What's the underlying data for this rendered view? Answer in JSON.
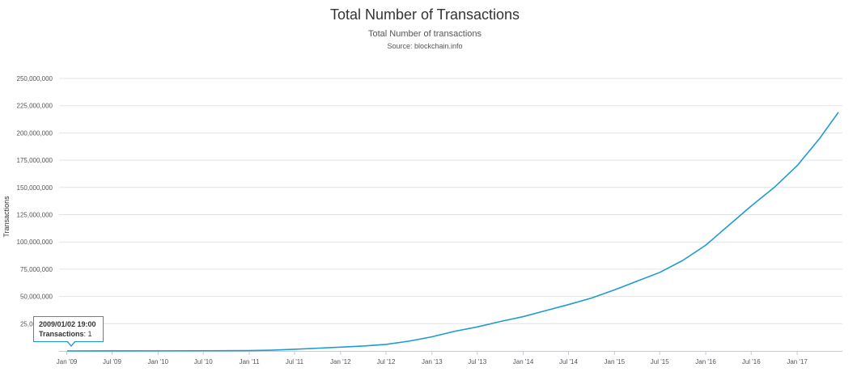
{
  "chart_data": {
    "type": "line",
    "title": "Total Number of Transactions",
    "subtitle": "Total Number of transactions",
    "source": "Source: blockchain.info",
    "xlabel": "",
    "ylabel": "Transactions",
    "ylim": [
      0,
      250000000
    ],
    "yticks": [
      {
        "value": 25000000,
        "label": "25,000,000"
      },
      {
        "value": 50000000,
        "label": "50,000,000"
      },
      {
        "value": 75000000,
        "label": "75,000,000"
      },
      {
        "value": 100000000,
        "label": "100,000,000"
      },
      {
        "value": 125000000,
        "label": "125,000,000"
      },
      {
        "value": 150000000,
        "label": "150,000,000"
      },
      {
        "value": 175000000,
        "label": "175,000,000"
      },
      {
        "value": 200000000,
        "label": "200,000,000"
      },
      {
        "value": 225000000,
        "label": "225,000,000"
      },
      {
        "value": 250000000,
        "label": "250,000,000"
      }
    ],
    "xlim": [
      "2008-12-01",
      "2017-07-01"
    ],
    "xticks": [
      {
        "date": "2009-01-01",
        "label": "Jan '09"
      },
      {
        "date": "2009-07-01",
        "label": "Jul '09"
      },
      {
        "date": "2010-01-01",
        "label": "Jan '10"
      },
      {
        "date": "2010-07-01",
        "label": "Jul '10"
      },
      {
        "date": "2011-01-01",
        "label": "Jan '11"
      },
      {
        "date": "2011-07-01",
        "label": "Jul '11"
      },
      {
        "date": "2012-01-01",
        "label": "Jan '12"
      },
      {
        "date": "2012-07-01",
        "label": "Jul '12"
      },
      {
        "date": "2013-01-01",
        "label": "Jan '13"
      },
      {
        "date": "2013-07-01",
        "label": "Jul '13"
      },
      {
        "date": "2014-01-01",
        "label": "Jan '14"
      },
      {
        "date": "2014-07-01",
        "label": "Jul '14"
      },
      {
        "date": "2015-01-01",
        "label": "Jan '15"
      },
      {
        "date": "2015-07-01",
        "label": "Jul '15"
      },
      {
        "date": "2016-01-01",
        "label": "Jan '16"
      },
      {
        "date": "2016-07-01",
        "label": "Jul '16"
      },
      {
        "date": "2017-01-01",
        "label": "Jan '17"
      }
    ],
    "grid": true,
    "series": [
      {
        "color": "#1f9bd1",
        "x": [
          "2009-01-02",
          "2009-07-01",
          "2010-01-01",
          "2010-07-01",
          "2011-01-01",
          "2011-04-01",
          "2011-07-01",
          "2011-10-01",
          "2012-01-01",
          "2012-04-01",
          "2012-07-01",
          "2012-10-01",
          "2013-01-01",
          "2013-04-01",
          "2013-07-01",
          "2013-10-01",
          "2014-01-01",
          "2014-04-01",
          "2014-07-01",
          "2014-10-01",
          "2015-01-01",
          "2015-04-01",
          "2015-07-01",
          "2015-10-01",
          "2016-01-01",
          "2016-04-01",
          "2016-07-01",
          "2016-10-01",
          "2017-01-01",
          "2017-04-01",
          "2017-06-15"
        ],
        "y": [
          1,
          30000,
          90000,
          180000,
          350000,
          700000,
          1500000,
          2500000,
          3500000,
          4500000,
          6000000,
          9000000,
          13000000,
          18000000,
          22000000,
          27000000,
          31500000,
          37000000,
          42500000,
          48500000,
          56000000,
          64000000,
          72000000,
          83000000,
          97000000,
          115000000,
          133000000,
          150000000,
          170000000,
          195000000,
          219000000
        ]
      }
    ],
    "tooltip": {
      "date": "2009/01/02 19:00",
      "label": "Transactions",
      "separator": ": ",
      "value": "1"
    }
  }
}
